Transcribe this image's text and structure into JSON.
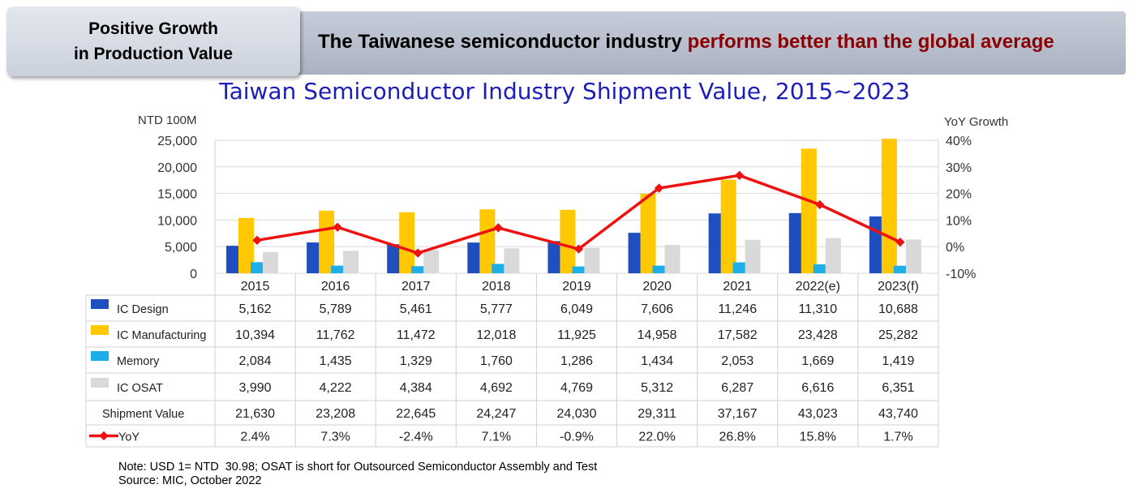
{
  "header": {
    "badge_line1": "Positive Growth",
    "badge_line2": "in Production Value",
    "headline_plain": "The Taiwanese semiconductor industry ",
    "headline_highlight": "performs better than the global average"
  },
  "chart_data": {
    "type": "bar",
    "title": "Taiwan Semiconductor Industry Shipment Value, 2015~2023",
    "ylabel": "NTD 100M",
    "y2label": "YoY Growth",
    "ylim": [
      0,
      25000
    ],
    "y_ticks": [
      "0",
      "5,000",
      "10,000",
      "15,000",
      "20,000",
      "25,000"
    ],
    "y2lim": [
      -10,
      40
    ],
    "y2_ticks": [
      "-10%",
      "0%",
      "10%",
      "20%",
      "30%",
      "40%"
    ],
    "categories": [
      "2015",
      "2016",
      "2017",
      "2018",
      "2019",
      "2020",
      "2021",
      "2022(e)",
      "2023(f)"
    ],
    "series": [
      {
        "name": "IC Design",
        "color": "#1f4fbf",
        "values": [
          5162,
          5789,
          5461,
          5777,
          6049,
          7606,
          11246,
          11310,
          10688
        ],
        "labels": [
          "5,162",
          "5,789",
          "5,461",
          "5,777",
          "6,049",
          "7,606",
          "11,246",
          "11,310",
          "10,688"
        ]
      },
      {
        "name": "IC Manufacturing",
        "color": "#ffc800",
        "values": [
          10394,
          11762,
          11472,
          12018,
          11925,
          14958,
          17582,
          23428,
          25282
        ],
        "labels": [
          "10,394",
          "11,762",
          "11,472",
          "12,018",
          "11,925",
          "14,958",
          "17,582",
          "23,428",
          "25,282"
        ]
      },
      {
        "name": "Memory",
        "color": "#1eaee8",
        "values": [
          2084,
          1435,
          1329,
          1760,
          1286,
          1434,
          2053,
          1669,
          1419
        ],
        "labels": [
          "2,084",
          "1,435",
          "1,329",
          "1,760",
          "1,286",
          "1,434",
          "2,053",
          "1,669",
          "1,419"
        ]
      },
      {
        "name": "IC OSAT",
        "color": "#d9d9d9",
        "values": [
          3990,
          4222,
          4384,
          4692,
          4769,
          5312,
          6287,
          6616,
          6351
        ],
        "labels": [
          "3,990",
          "4,222",
          "4,384",
          "4,692",
          "4,769",
          "5,312",
          "6,287",
          "6,616",
          "6,351"
        ]
      }
    ],
    "total": {
      "name": "Shipment Value",
      "labels": [
        "21,630",
        "23,208",
        "22,645",
        "24,247",
        "24,030",
        "29,311",
        "37,167",
        "43,023",
        "43,740"
      ]
    },
    "yoy": {
      "name": "YoY",
      "color": "#ee1111",
      "values": [
        2.4,
        7.3,
        -2.4,
        7.1,
        -0.9,
        22.0,
        26.8,
        15.8,
        1.7
      ],
      "labels": [
        "2.4%",
        "7.3%",
        "-2.4%",
        "7.1%",
        "-0.9%",
        "22.0%",
        "26.8%",
        "15.8%",
        "1.7%"
      ]
    },
    "grid": true
  },
  "footer": {
    "note": "Note: USD 1= NTD  30.98; OSAT is short for Outsourced Semiconductor Assembly and Test",
    "source": "Source: MIC, October 2022"
  }
}
